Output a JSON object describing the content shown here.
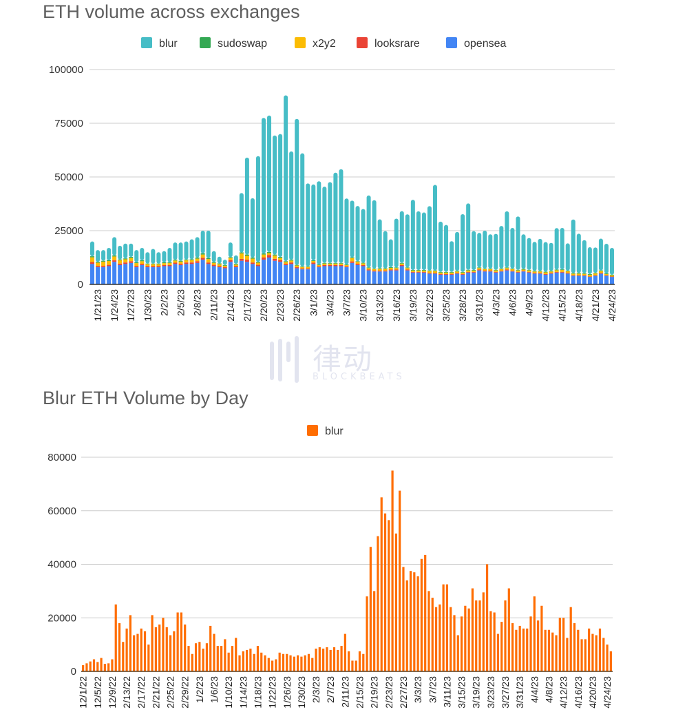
{
  "chart_data": [
    {
      "type": "bar",
      "stacked": true,
      "title": "ETH volume across exchanges",
      "xlabel": "",
      "ylabel": "",
      "ylim": [
        0,
        100000
      ],
      "yticks": [
        0,
        25000,
        50000,
        75000,
        100000
      ],
      "ytick_labels": [
        "0",
        "25000",
        "50000",
        "75000",
        "100000"
      ],
      "grid": true,
      "legend_position": "top",
      "legend": [
        "blur",
        "sudoswap",
        "x2y2",
        "looksrare",
        "opensea"
      ],
      "colors": {
        "blur": "#46bdc6",
        "sudoswap": "#34a853",
        "x2y2": "#fbbc04",
        "looksrare": "#ea4335",
        "opensea": "#4285f4"
      },
      "x_tick_labels": [
        "1/21/23",
        "1/24/23",
        "1/27/23",
        "1/30/23",
        "2/2/23",
        "2/5/23",
        "2/8/23",
        "2/11/23",
        "2/14/23",
        "2/17/23",
        "2/20/23",
        "2/23/23",
        "2/26/23",
        "3/1/23",
        "3/4/23",
        "3/7/23",
        "3/10/23",
        "3/13/23",
        "3/16/23",
        "3/19/23",
        "3/22/23",
        "3/25/23",
        "3/28/23",
        "3/31/23",
        "4/3/23",
        "4/6/23",
        "4/9/23",
        "4/12/23",
        "4/15/23",
        "4/18/23",
        "4/21/23",
        "4/24/23"
      ],
      "x_start": "1/20/23",
      "x_tick_every": 3,
      "x_tick_offset": 1,
      "series": [
        {
          "name": "opensea",
          "values": [
            9500,
            8000,
            8000,
            8500,
            10500,
            9000,
            9500,
            10000,
            8000,
            9000,
            8000,
            8000,
            8000,
            8500,
            8500,
            9500,
            9000,
            9500,
            9500,
            10000,
            11500,
            9500,
            8500,
            8000,
            7500,
            10500,
            8000,
            11000,
            10500,
            9500,
            8500,
            11500,
            12500,
            11000,
            10500,
            9000,
            9500,
            7500,
            7000,
            7000,
            9500,
            8000,
            8500,
            8500,
            8500,
            8500,
            8000,
            10000,
            9000,
            8500,
            6500,
            6000,
            6000,
            6000,
            6500,
            6500,
            8500,
            6500,
            5500,
            5500,
            5500,
            5000,
            5000,
            4500,
            4500,
            4500,
            5000,
            4500,
            5500,
            5500,
            6500,
            6000,
            6000,
            5500,
            6000,
            6500,
            6000,
            5500,
            6000,
            5500,
            5000,
            5000,
            4500,
            5000,
            5500,
            5500,
            5000,
            4000,
            4000,
            4000,
            3500,
            4000,
            5000,
            4000,
            3500
          ]
        },
        {
          "name": "looksrare",
          "values": [
            900,
            600,
            600,
            600,
            700,
            700,
            700,
            800,
            600,
            600,
            500,
            500,
            500,
            500,
            500,
            600,
            600,
            700,
            700,
            800,
            900,
            700,
            600,
            500,
            500,
            800,
            500,
            900,
            1000,
            700,
            600,
            1000,
            1200,
            900,
            800,
            600,
            700,
            500,
            400,
            400,
            600,
            400,
            500,
            500,
            500,
            500,
            400,
            700,
            600,
            500,
            400,
            400,
            400,
            400,
            400,
            400,
            500,
            400,
            300,
            300,
            300,
            300,
            300,
            300,
            300,
            300,
            300,
            300,
            300,
            300,
            400,
            400,
            400,
            300,
            300,
            400,
            300,
            300,
            300,
            300,
            300,
            300,
            300,
            300,
            300,
            300,
            300,
            200,
            200,
            200,
            200,
            200,
            300,
            200,
            200
          ]
        },
        {
          "name": "x2y2",
          "values": [
            2200,
            1500,
            2000,
            1800,
            1800,
            1500,
            1500,
            1500,
            1300,
            1200,
            900,
            900,
            900,
            900,
            1000,
            1000,
            1000,
            1000,
            1100,
            1200,
            1500,
            1600,
            900,
            900,
            700,
            1000,
            700,
            2500,
            1800,
            1800,
            1000,
            1400,
            900,
            1500,
            1000,
            800,
            900,
            800,
            700,
            700,
            800,
            600,
            700,
            700,
            700,
            700,
            600,
            1500,
            900,
            800,
            700,
            700,
            800,
            800,
            800,
            700,
            700,
            700,
            600,
            600,
            600,
            900,
            900,
            700,
            700,
            700,
            700,
            700,
            700,
            600,
            700,
            700,
            700,
            700,
            800,
            700,
            800,
            700,
            600,
            700,
            700,
            700,
            800,
            700,
            800,
            900,
            800,
            800,
            800,
            700,
            800,
            900,
            900,
            600,
            500
          ]
        },
        {
          "name": "sudoswap",
          "values": [
            500,
            400,
            400,
            400,
            500,
            400,
            400,
            500,
            400,
            400,
            300,
            300,
            300,
            400,
            400,
            400,
            400,
            400,
            400,
            500,
            600,
            500,
            400,
            400,
            300,
            400,
            400,
            500,
            600,
            500,
            400,
            500,
            500,
            500,
            500,
            400,
            400,
            300,
            300,
            300,
            300,
            300,
            300,
            300,
            300,
            300,
            300,
            400,
            300,
            300,
            300,
            300,
            300,
            300,
            300,
            300,
            300,
            300,
            300,
            300,
            300,
            300,
            300,
            300,
            300,
            300,
            300,
            300,
            300,
            300,
            300,
            300,
            300,
            300,
            300,
            300,
            300,
            300,
            300,
            300,
            300,
            300,
            300,
            300,
            300,
            300,
            300,
            300,
            300,
            300,
            300,
            300,
            300,
            300,
            300
          ]
        },
        {
          "name": "blur",
          "values": [
            6900,
            5500,
            5000,
            5700,
            8500,
            6400,
            6900,
            6200,
            5700,
            5800,
            5300,
            6800,
            5300,
            5200,
            6600,
            8000,
            8500,
            8400,
            9300,
            9500,
            10500,
            12700,
            5100,
            3100,
            2500,
            6800,
            3900,
            27600,
            45100,
            27600,
            49200,
            63100,
            63500,
            55400,
            57200,
            77200,
            50400,
            67900,
            52600,
            38600,
            35300,
            38700,
            35500,
            37600,
            42000,
            43600,
            30700,
            26400,
            25700,
            25000,
            33500,
            31800,
            22800,
            17300,
            13000,
            22700,
            24100,
            24700,
            32700,
            27300,
            26800,
            29900,
            39800,
            23400,
            21900,
            14300,
            18100,
            26900,
            30900,
            18100,
            16100,
            17600,
            15900,
            16700,
            19800,
            26100,
            18900,
            24800,
            16100,
            14800,
            13500,
            14900,
            13800,
            13000,
            19300,
            19300,
            12700,
            24900,
            18300,
            15400,
            12500,
            11800,
            14800,
            13800,
            12500
          ]
        }
      ]
    },
    {
      "type": "bar",
      "title": "Blur ETH Volume by Day",
      "xlabel": "",
      "ylabel": "",
      "ylim": [
        0,
        80000
      ],
      "yticks": [
        0,
        20000,
        40000,
        60000,
        80000
      ],
      "ytick_labels": [
        "0",
        "20000",
        "40000",
        "60000",
        "80000"
      ],
      "grid": true,
      "legend_position": "top",
      "legend": [
        "blur"
      ],
      "colors": {
        "blur": "#ff6d01"
      },
      "x_tick_labels": [
        "12/1/22",
        "12/5/22",
        "12/9/22",
        "2/13/22",
        "2/17/22",
        "2/21/22",
        "2/25/22",
        "2/29/22",
        "1/2/23",
        "1/6/23",
        "1/10/23",
        "1/14/23",
        "1/18/23",
        "1/22/23",
        "1/26/23",
        "1/30/23",
        "2/3/23",
        "2/7/23",
        "2/11/23",
        "2/15/23",
        "2/19/23",
        "2/23/23",
        "2/27/23",
        "3/3/23",
        "3/7/23",
        "3/11/23",
        "3/15/23",
        "3/19/23",
        "3/23/23",
        "3/27/23",
        "3/31/23",
        "4/4/23",
        "4/8/23",
        "4/12/23",
        "4/16/23",
        "4/20/23",
        "4/24/23"
      ],
      "x_start": "12/1/22",
      "x_tick_every": 4,
      "x_tick_offset": 0,
      "series": [
        {
          "name": "blur",
          "values": [
            2300,
            3000,
            3700,
            4500,
            3500,
            5000,
            2800,
            3000,
            4500,
            25000,
            18000,
            11000,
            16000,
            21000,
            13500,
            14000,
            16000,
            15000,
            10000,
            21000,
            16500,
            17500,
            20000,
            16500,
            13500,
            15000,
            22000,
            22000,
            17500,
            9500,
            6500,
            10500,
            11000,
            8500,
            10500,
            17000,
            14000,
            9500,
            9500,
            12000,
            7000,
            9500,
            12500,
            6000,
            7500,
            8000,
            8500,
            6500,
            9500,
            7000,
            6000,
            5000,
            4000,
            4500,
            7000,
            6500,
            6500,
            6000,
            5500,
            6000,
            5500,
            6000,
            6500,
            5000,
            8500,
            9000,
            8500,
            9000,
            8000,
            9000,
            8000,
            9500,
            14000,
            7500,
            4000,
            4000,
            7500,
            6500,
            28000,
            46500,
            30000,
            50500,
            65000,
            59000,
            56500,
            75000,
            51500,
            67500,
            39000,
            34000,
            37500,
            37000,
            35500,
            42000,
            43500,
            30000,
            27500,
            24000,
            25000,
            32500,
            32500,
            24000,
            21000,
            13500,
            20500,
            24500,
            23500,
            31000,
            26500,
            26500,
            29500,
            40000,
            22500,
            22000,
            14000,
            18500,
            26500,
            31000,
            18000,
            15500,
            17000,
            16000,
            16000,
            20500,
            28000,
            19000,
            24500,
            15500,
            15500,
            14500,
            13500,
            20000,
            20000,
            12500,
            24000,
            18000,
            15500,
            12000,
            12000,
            16000,
            14000,
            13500,
            16000,
            12500,
            10000,
            7500
          ]
        }
      ]
    }
  ],
  "watermark": {
    "text": "律动",
    "subtext": "BLOCKBEATS"
  }
}
